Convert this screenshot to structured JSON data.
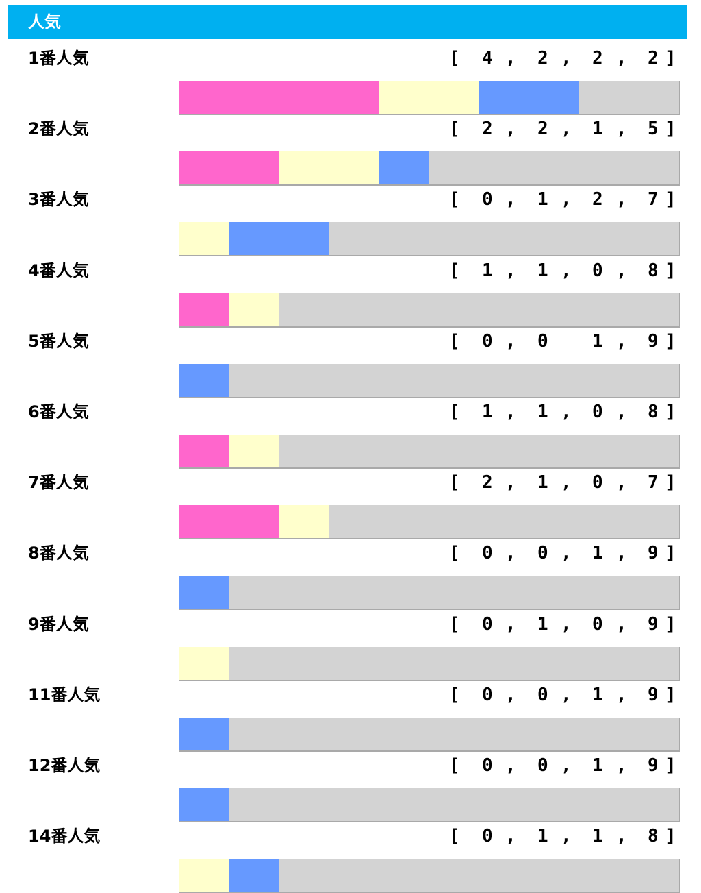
{
  "header": {
    "title": "人気"
  },
  "colors": {
    "first": "#ff66cc",
    "second": "#ffffcc",
    "third": "#6699ff",
    "other": "#d3d3d3",
    "header_bg": "#00b0f0"
  },
  "chart_data": {
    "type": "bar",
    "stacked": true,
    "orientation": "horizontal",
    "categories": [
      "1番人気",
      "2番人気",
      "3番人気",
      "4番人気",
      "5番人気",
      "6番人気",
      "7番人気",
      "8番人気",
      "9番人気",
      "11番人気",
      "12番人気",
      "14番人気"
    ],
    "series": [
      {
        "values": [
          4,
          2,
          0,
          1,
          0,
          1,
          2,
          0,
          0,
          0,
          0,
          0
        ]
      },
      {
        "values": [
          2,
          2,
          1,
          1,
          0,
          1,
          1,
          0,
          1,
          0,
          0,
          1
        ]
      },
      {
        "values": [
          2,
          1,
          2,
          0,
          1,
          0,
          0,
          1,
          0,
          1,
          1,
          1
        ]
      },
      {
        "values": [
          2,
          5,
          7,
          8,
          9,
          8,
          7,
          9,
          9,
          9,
          9,
          8
        ]
      }
    ],
    "record_commas": [
      [
        ",",
        ",",
        ","
      ],
      [
        ",",
        ",",
        ","
      ],
      [
        ",",
        ",",
        ","
      ],
      [
        ",",
        ",",
        ","
      ],
      [
        ",",
        "",
        ","
      ],
      [
        ",",
        ",",
        ","
      ],
      [
        ",",
        ",",
        ","
      ],
      [
        ",",
        ",",
        ","
      ],
      [
        ",",
        ",",
        ","
      ],
      [
        ",",
        ",",
        ","
      ],
      [
        ",",
        ",",
        ","
      ],
      [
        ",",
        ",",
        ","
      ]
    ],
    "bar_scale_total": 10,
    "brackets": [
      "[",
      "]"
    ]
  }
}
